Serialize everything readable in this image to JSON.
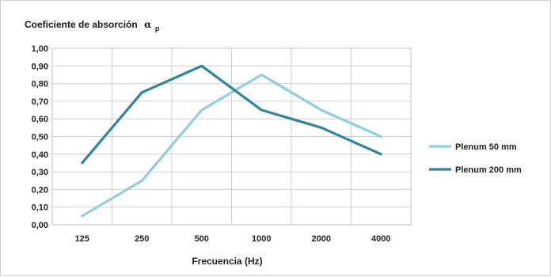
{
  "chart_data": {
    "type": "line",
    "title": "Coeficiente de absorción",
    "title_symbol": "α",
    "title_subscript": "p",
    "xlabel": "Frecuencia (Hz)",
    "ylabel": "",
    "categories": [
      "125",
      "250",
      "500",
      "1000",
      "2000",
      "4000"
    ],
    "y_tick_labels": [
      "0,00",
      "0,10",
      "0,20",
      "0,30",
      "0,40",
      "0,50",
      "0,60",
      "0,70",
      "0,80",
      "0,90",
      "1,00"
    ],
    "ylim": [
      0,
      1
    ],
    "grid": true,
    "legend_position": "right",
    "series": [
      {
        "name": "Plenum 50 mm",
        "color": "#92cddc",
        "values": [
          0.05,
          0.25,
          0.65,
          0.85,
          0.65,
          0.5
        ]
      },
      {
        "name": "Plenum 200 mm",
        "color": "#31849b",
        "values": [
          0.35,
          0.75,
          0.9,
          0.65,
          0.55,
          0.4
        ]
      }
    ]
  }
}
